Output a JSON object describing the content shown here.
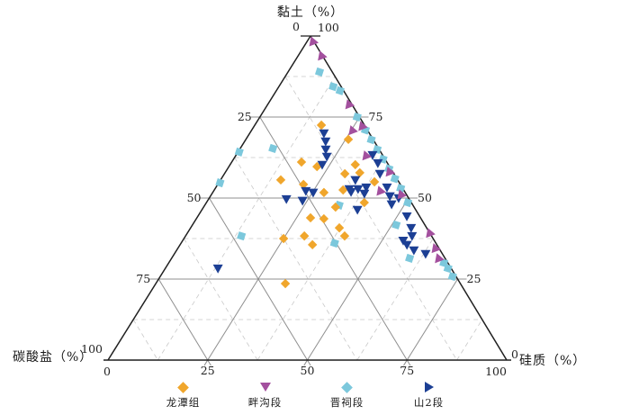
{
  "figure": {
    "title_top": "黏土（%）",
    "label_bottom_left": "碳酸盐（%）",
    "label_bottom_right": "硅质（%）"
  },
  "ticks": {
    "left_edge": [
      25,
      50,
      75
    ],
    "right_edge": [
      75,
      50,
      25
    ],
    "bottom_edge": [
      25,
      50,
      75
    ],
    "apex_left": "0",
    "apex_right": "100",
    "bottom_left_upper": "100",
    "bottom_left_lower": "0",
    "bottom_right_upper": "0",
    "bottom_right_lower": "100"
  },
  "style": {
    "edge_color": "#1f1f1f",
    "major_grid_color": "#8f8f8f",
    "minor_grid_color": "#c8c8c8",
    "tick_font_size": 12.5
  },
  "chart_data": {
    "type": "scatter",
    "subtype": "ternary",
    "axes": {
      "top_vertex": "黏土 (%) = 100",
      "bottom_left_vertex": "碳酸盐 (%) = 100",
      "bottom_right_vertex": "硅质 (%) = 100"
    },
    "tick_interval": 25,
    "minor_grid_interval": 12.5,
    "point_format": [
      "clay",
      "silica",
      "carbonate"
    ],
    "series": [
      {
        "name": "龙潭组",
        "color": "#F0A62C",
        "legend_marker": "diamond",
        "plot_marker": "diamond",
        "plot_rotation": 0,
        "points": [
          [
            72.5,
            16.7,
            10.8
          ],
          [
            68.1,
            25.7,
            6.2
          ],
          [
            61.1,
            17.5,
            21.4
          ],
          [
            59.7,
            22.1,
            18.2
          ],
          [
            60.3,
            31.4,
            8.3
          ],
          [
            57.5,
            30.2,
            12.3
          ],
          [
            57.8,
            33.8,
            8.4
          ],
          [
            55.6,
            15.1,
            29.3
          ],
          [
            54.2,
            21.5,
            24.3
          ],
          [
            55.0,
            38.9,
            6.1
          ],
          [
            51.7,
            27.9,
            20.4
          ],
          [
            52.5,
            32.3,
            15.2
          ],
          [
            47.2,
            33.1,
            19.7
          ],
          [
            48.6,
            39.6,
            11.8
          ],
          [
            43.9,
            28.5,
            27.6
          ],
          [
            43.6,
            32.0,
            24.4
          ],
          [
            40.8,
            37.3,
            21.9
          ],
          [
            38.3,
            29.8,
            31.9
          ],
          [
            37.5,
            25.0,
            37.5
          ],
          [
            38.3,
            39.9,
            21.8
          ],
          [
            35.6,
            33.2,
            31.2
          ],
          [
            23.6,
            32.5,
            43.9
          ]
        ]
      },
      {
        "name": "畔沟段",
        "color": "#A3509E",
        "legend_marker": "triangle-down",
        "plot_marker": "triangle-down",
        "plot_rotation": 40,
        "points": [
          [
            98.0,
            1.5,
            0.5
          ],
          [
            93.6,
            5.9,
            0.5
          ],
          [
            78.6,
            20.4,
            1.0
          ],
          [
            71.9,
            27.1,
            1.0
          ],
          [
            70.6,
            25.3,
            4.1
          ],
          [
            62.8,
            32.7,
            4.5
          ],
          [
            57.8,
            41.1,
            1.1
          ],
          [
            51.9,
            41.8,
            6.3
          ],
          [
            50.8,
            47.6,
            1.6
          ],
          [
            38.9,
            60.8,
            0.3
          ],
          [
            34.2,
            64.6,
            1.2
          ],
          [
            31.1,
            67.0,
            1.9
          ]
        ]
      },
      {
        "name": "晋祠段",
        "color": "#7CC8DC",
        "legend_marker": "diamond",
        "plot_marker": "square",
        "plot_rotation": 18,
        "points": [
          [
            88.9,
            7.9,
            3.2
          ],
          [
            84.4,
            13.6,
            2.0
          ],
          [
            83.1,
            16.0,
            0.9
          ],
          [
            75.0,
            24.4,
            0.6
          ],
          [
            71.0,
            28.5,
            0.5
          ],
          [
            68.0,
            31.5,
            0.5
          ],
          [
            65.0,
            34.5,
            0.5
          ],
          [
            62.0,
            37.5,
            0.5
          ],
          [
            59.0,
            40.5,
            0.5
          ],
          [
            56.0,
            43.5,
            0.5
          ],
          [
            53.0,
            46.5,
            0.5
          ],
          [
            48.6,
            50.5,
            0.9
          ],
          [
            65.3,
            8.2,
            26.5
          ],
          [
            64.2,
            0.3,
            35.5
          ],
          [
            54.7,
            0.3,
            45.0
          ],
          [
            47.8,
            33.7,
            18.5
          ],
          [
            41.7,
            51.1,
            7.2
          ],
          [
            38.3,
            14.0,
            47.7
          ],
          [
            36.1,
            38.5,
            25.4
          ],
          [
            31.4,
            59.7,
            8.9
          ],
          [
            30.0,
            69.0,
            1.0
          ],
          [
            28.3,
            70.9,
            0.8
          ],
          [
            25.8,
            73.3,
            0.9
          ]
        ]
      },
      {
        "name": "山2段",
        "color": "#1C3F94",
        "legend_marker": "triangle-right",
        "plot_marker": "triangle-down",
        "plot_rotation": 0,
        "points": [
          [
            70.0,
            18.6,
            11.4
          ],
          [
            67.5,
            20.3,
            12.2
          ],
          [
            65.0,
            21.6,
            13.4
          ],
          [
            62.8,
            23.0,
            14.2
          ],
          [
            60.3,
            23.1,
            16.6
          ],
          [
            63.3,
            34.2,
            2.5
          ],
          [
            60.8,
            36.8,
            2.4
          ],
          [
            57.5,
            39.0,
            3.5
          ],
          [
            55.6,
            33.8,
            10.6
          ],
          [
            53.3,
            42.9,
            3.8
          ],
          [
            53.3,
            37.7,
            9.0
          ],
          [
            52.8,
            35.9,
            11.3
          ],
          [
            52.8,
            33.7,
            13.5
          ],
          [
            51.9,
            34.6,
            13.5
          ],
          [
            51.4,
            38.2,
            10.4
          ],
          [
            50.6,
            45.0,
            4.4
          ],
          [
            50.0,
            47.5,
            2.5
          ],
          [
            48.1,
            46.7,
            5.2
          ],
          [
            52.2,
            23.1,
            24.7
          ],
          [
            51.7,
            25.2,
            23.1
          ],
          [
            49.7,
            19.5,
            30.8
          ],
          [
            49.2,
            23.8,
            27.0
          ],
          [
            46.4,
            39.0,
            14.6
          ],
          [
            44.4,
            52.4,
            3.2
          ],
          [
            40.8,
            55.3,
            3.9
          ],
          [
            38.3,
            56.8,
            4.9
          ],
          [
            36.9,
            55.3,
            7.8
          ],
          [
            35.6,
            56.9,
            7.5
          ],
          [
            33.9,
            59.5,
            6.6
          ],
          [
            32.8,
            63.0,
            4.2
          ],
          [
            28.3,
            13.2,
            58.5
          ]
        ]
      }
    ]
  }
}
